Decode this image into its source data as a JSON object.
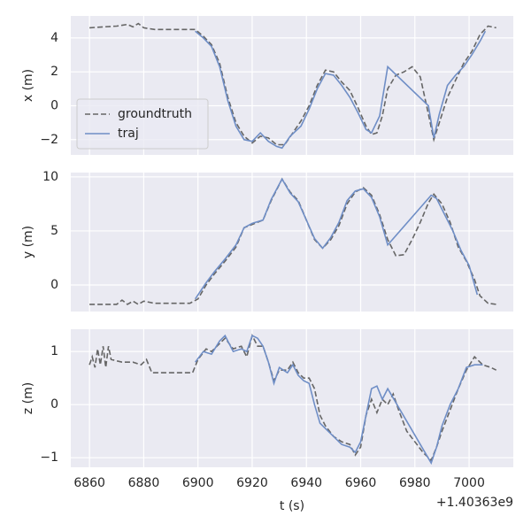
{
  "chart_data": [
    {
      "type": "line",
      "ylabel": "x (m)",
      "xlim": [
        6853.1,
        7016.3
      ],
      "ylim": [
        -2.9,
        5.3
      ],
      "yticks": [
        {
          "value": -2,
          "label": "−2"
        },
        0,
        2,
        4
      ],
      "grid": true,
      "legend": "lower left",
      "series": [
        {
          "name": "groundtruth",
          "color": "#666666",
          "dash": true,
          "x": [
            6860,
            6865,
            6870,
            6874,
            6876,
            6878,
            6880,
            6884,
            6890,
            6899,
            6902,
            6905,
            6908,
            6911,
            6914,
            6917,
            6920,
            6923,
            6926,
            6929,
            6932,
            6935,
            6938,
            6941,
            6944,
            6947,
            6950,
            6953,
            6956,
            6959,
            6962,
            6964,
            6966,
            6968,
            6970,
            6973,
            6976,
            6979,
            6982,
            6985,
            6987,
            6989,
            6992,
            6995,
            6998,
            7001,
            7004,
            7007,
            7010
          ],
          "values": [
            4.6,
            4.65,
            4.7,
            4.8,
            4.65,
            4.85,
            4.6,
            4.5,
            4.5,
            4.5,
            4.1,
            3.6,
            2.5,
            0.5,
            -1.0,
            -1.8,
            -2.2,
            -1.8,
            -1.9,
            -2.3,
            -2.3,
            -1.6,
            -0.9,
            0.0,
            1.2,
            2.1,
            2.0,
            1.4,
            0.9,
            -0.1,
            -1.2,
            -1.7,
            -1.6,
            -0.6,
            1.0,
            1.8,
            2.0,
            2.3,
            1.7,
            -0.5,
            -2.0,
            -1.0,
            0.5,
            1.5,
            2.5,
            3.2,
            4.2,
            4.7,
            4.6
          ]
        },
        {
          "name": "traj",
          "color": "#6f8ec6",
          "dash": false,
          "x": [
            6899,
            6902,
            6905,
            6908,
            6911,
            6914,
            6917,
            6920,
            6923,
            6926,
            6929,
            6931,
            6934,
            6938,
            6941,
            6944,
            6947,
            6950,
            6953,
            6956,
            6959,
            6962,
            6964,
            6967,
            6970,
            6985,
            6987,
            6989,
            6992,
            6995,
            6998,
            7001,
            7004,
            7006
          ],
          "values": [
            4.4,
            4.0,
            3.5,
            2.3,
            0.3,
            -1.2,
            -2.0,
            -2.1,
            -1.6,
            -2.1,
            -2.4,
            -2.5,
            -1.8,
            -1.2,
            -0.2,
            1.0,
            1.9,
            1.8,
            1.2,
            0.5,
            -0.4,
            -1.4,
            -1.6,
            -0.6,
            2.3,
            0.0,
            -1.9,
            -0.5,
            1.2,
            1.8,
            2.3,
            3.0,
            3.8,
            4.4
          ]
        }
      ]
    },
    {
      "type": "line",
      "ylabel": "y (m)",
      "xlim": [
        6853.1,
        7016.3
      ],
      "ylim": [
        -2.46,
        10.4
      ],
      "yticks": [
        0,
        5,
        10
      ],
      "grid": true,
      "series": [
        {
          "color": "#666666",
          "dash": true,
          "x": [
            6860,
            6866,
            6870,
            6872,
            6874,
            6876,
            6878,
            6880,
            6884,
            6890,
            6897,
            6900,
            6903,
            6906,
            6910,
            6914,
            6917,
            6920,
            6924,
            6927,
            6931,
            6934,
            6937,
            6940,
            6943,
            6946,
            6949,
            6952,
            6955,
            6958,
            6961,
            6964,
            6967,
            6970,
            6973,
            6976,
            6979,
            6982,
            6985,
            6987,
            6990,
            6993,
            6996,
            6999,
            7002,
            7004,
            7007,
            7010
          ],
          "values": [
            -1.8,
            -1.8,
            -1.8,
            -1.4,
            -1.8,
            -1.5,
            -1.8,
            -1.5,
            -1.7,
            -1.7,
            -1.7,
            -1.3,
            0.0,
            1.0,
            2.2,
            3.5,
            5.3,
            5.6,
            6.0,
            7.8,
            9.8,
            8.6,
            7.8,
            6.0,
            4.2,
            3.4,
            4.2,
            5.5,
            7.5,
            8.6,
            9.0,
            8.3,
            6.5,
            4.2,
            2.7,
            2.8,
            4.2,
            5.8,
            7.6,
            8.4,
            7.5,
            5.8,
            3.5,
            2.2,
            0.5,
            -1.0,
            -1.7,
            -1.8
          ]
        },
        {
          "color": "#6f8ec6",
          "dash": false,
          "x": [
            6899,
            6903,
            6906,
            6910,
            6914,
            6917,
            6920,
            6924,
            6927,
            6931,
            6934,
            6937,
            6940,
            6943,
            6946,
            6949,
            6952,
            6955,
            6958,
            6961,
            6964,
            6967,
            6970,
            6986,
            6988,
            6991,
            6994,
            6997,
            7000,
            7003
          ],
          "values": [
            -1.3,
            0.2,
            1.2,
            2.4,
            3.7,
            5.3,
            5.7,
            6.0,
            7.9,
            9.8,
            8.5,
            7.7,
            6.0,
            4.3,
            3.4,
            4.4,
            5.8,
            7.8,
            8.7,
            8.9,
            8.1,
            6.3,
            3.7,
            8.3,
            8.0,
            6.5,
            5.0,
            3.2,
            1.8,
            -0.9
          ]
        }
      ]
    },
    {
      "type": "line",
      "ylabel": "z (m)",
      "xlabel": "t (s)",
      "x_offset": "+1.40363e9",
      "xlim": [
        6853.1,
        7016.3
      ],
      "xticks": [
        6860,
        6880,
        6900,
        6920,
        6940,
        6960,
        6980,
        7000
      ],
      "ylim": [
        -1.18,
        1.42
      ],
      "yticks": [
        {
          "value": -1,
          "label": "−1"
        },
        0,
        1
      ],
      "grid": true,
      "series": [
        {
          "color": "#666666",
          "dash": true,
          "x": [
            6860,
            6861,
            6862,
            6863,
            6864,
            6865,
            6866,
            6867,
            6868,
            6872,
            6876,
            6879,
            6881,
            6883,
            6890,
            6898,
            6900,
            6903,
            6905,
            6908,
            6910,
            6913,
            6916,
            6918,
            6920,
            6922,
            6924,
            6926,
            6928,
            6930,
            6933,
            6935,
            6937,
            6939,
            6941,
            6943,
            6945,
            6947,
            6950,
            6953,
            6956,
            6958,
            6960,
            6962,
            6964,
            6966,
            6968,
            6970,
            6972,
            6974,
            6977,
            6980,
            6983,
            6986,
            6988,
            6990,
            6993,
            6996,
            6999,
            7002,
            7005,
            7008,
            7010
          ],
          "values": [
            0.75,
            0.9,
            0.7,
            1.05,
            0.75,
            1.1,
            0.7,
            1.1,
            0.85,
            0.8,
            0.8,
            0.75,
            0.85,
            0.6,
            0.6,
            0.6,
            0.85,
            1.05,
            1.0,
            1.15,
            1.25,
            1.05,
            1.1,
            0.9,
            1.3,
            1.1,
            1.1,
            0.8,
            0.45,
            0.65,
            0.65,
            0.8,
            0.6,
            0.5,
            0.5,
            0.3,
            -0.2,
            -0.4,
            -0.6,
            -0.7,
            -0.75,
            -0.95,
            -0.8,
            -0.2,
            0.1,
            -0.15,
            0.1,
            0.0,
            0.2,
            -0.1,
            -0.5,
            -0.7,
            -0.9,
            -1.05,
            -0.8,
            -0.5,
            -0.1,
            0.3,
            0.65,
            0.9,
            0.75,
            0.7,
            0.65
          ]
        },
        {
          "color": "#6f8ec6",
          "dash": false,
          "x": [
            6899,
            6902,
            6905,
            6908,
            6910,
            6913,
            6916,
            6918,
            6920,
            6922,
            6924,
            6926,
            6928,
            6930,
            6933,
            6935,
            6937,
            6939,
            6941,
            6943,
            6945,
            6947,
            6950,
            6953,
            6956,
            6958,
            6960,
            6962,
            6964,
            6966,
            6968,
            6970,
            6986,
            6988,
            6990,
            6993,
            6996,
            6999,
            7002,
            7005
          ],
          "values": [
            0.8,
            1.0,
            0.95,
            1.2,
            1.3,
            1.0,
            1.05,
            1.0,
            1.3,
            1.25,
            1.1,
            0.8,
            0.4,
            0.7,
            0.6,
            0.75,
            0.55,
            0.45,
            0.4,
            0.0,
            -0.35,
            -0.45,
            -0.6,
            -0.75,
            -0.8,
            -0.9,
            -0.7,
            -0.2,
            0.3,
            0.35,
            0.1,
            0.3,
            -1.1,
            -0.8,
            -0.4,
            0.0,
            0.3,
            0.7,
            0.75,
            0.75
          ]
        }
      ]
    }
  ]
}
